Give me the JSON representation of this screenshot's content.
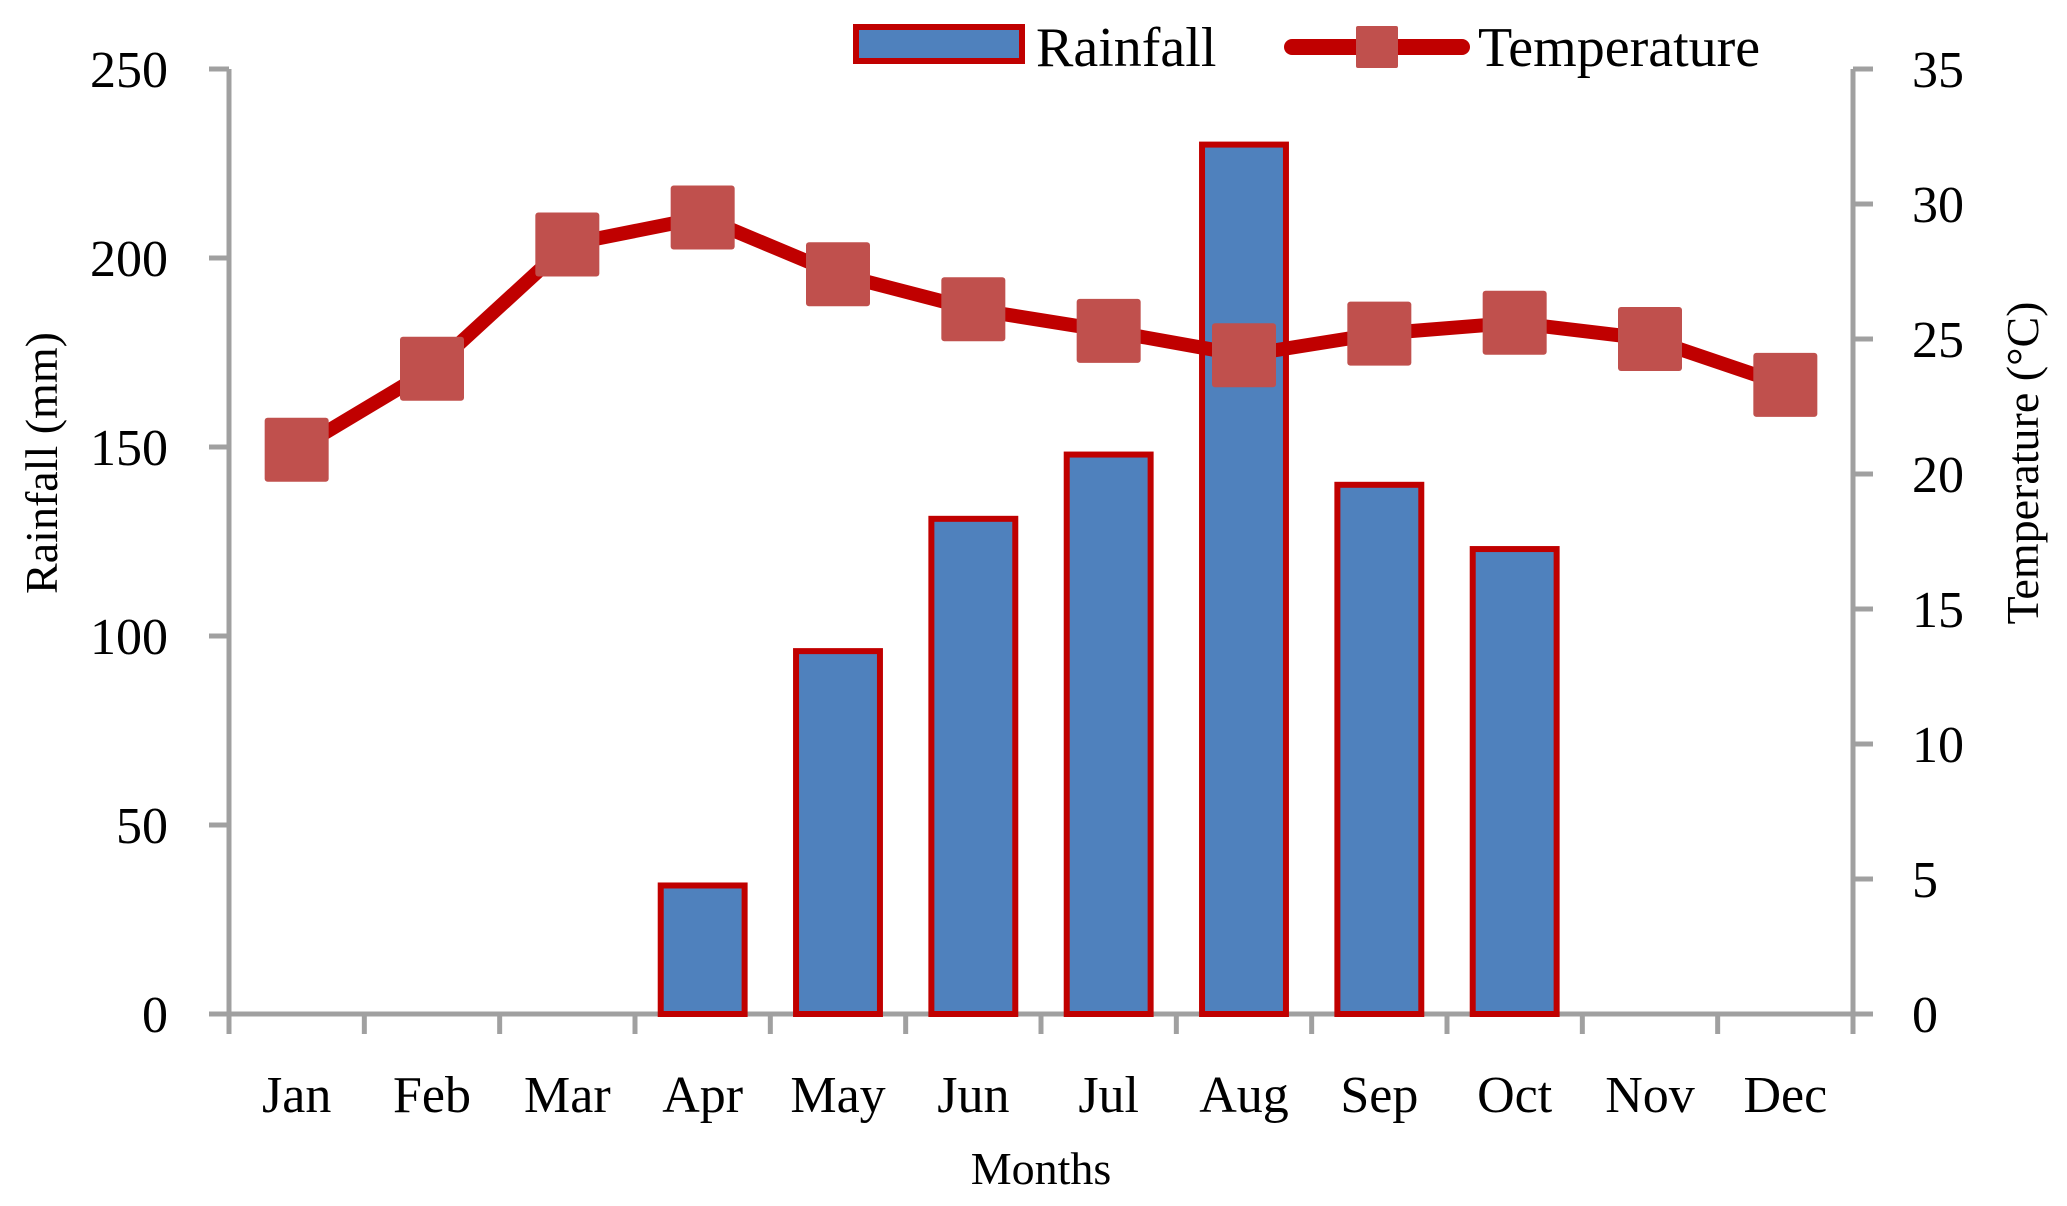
{
  "chart_data": {
    "type": "bar+line",
    "title": "",
    "categories": [
      "Jan",
      "Feb",
      "Mar",
      "Apr",
      "May",
      "Jun",
      "Jul",
      "Aug",
      "Sep",
      "Oct",
      "Nov",
      "Dec"
    ],
    "xlabel": "Months",
    "ylabel_left": "Rainfall (mm)",
    "ylabel_right": "Temperature (°C)",
    "ylim_left": [
      0,
      250
    ],
    "ylim_right": [
      0,
      35
    ],
    "yticks_left": [
      "0",
      "50",
      "100",
      "150",
      "200",
      "250"
    ],
    "yticks_right": [
      "0",
      "5",
      "10",
      "15",
      "20",
      "25",
      "30",
      "35"
    ],
    "grid": false,
    "legend_position": "top-right",
    "series": [
      {
        "name": "Rainfall",
        "type": "bar",
        "axis": "left",
        "values": [
          0,
          0,
          0,
          34,
          96,
          131,
          148,
          230,
          140,
          123,
          0,
          0
        ],
        "fill_color": "#4F81BD",
        "border_color": "#C00000"
      },
      {
        "name": "Temperature",
        "type": "line",
        "axis": "right",
        "values": [
          20.9,
          23.9,
          28.5,
          29.5,
          27.4,
          26.1,
          25.3,
          24.4,
          25.2,
          25.6,
          25.0,
          23.3
        ],
        "line_color": "#C00000",
        "marker": "square",
        "marker_color": "#C0504D"
      }
    ],
    "axis_color": "#A0A0A0"
  }
}
